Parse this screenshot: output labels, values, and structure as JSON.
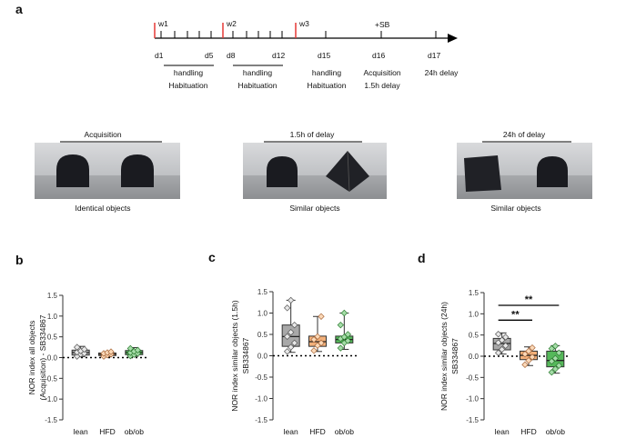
{
  "figure": {
    "panel_a": {
      "label": "a",
      "timeline": {
        "weeks": [
          "w1",
          "w2",
          "w3"
        ],
        "days": [
          "d1",
          "d5",
          "d8",
          "d12",
          "d15",
          "d16",
          "d17"
        ],
        "sb_label": "+SB",
        "phases": [
          {
            "top": "handling",
            "bottom": "Habituation"
          },
          {
            "top": "handling",
            "bottom": "Habituation"
          },
          {
            "top": "handling",
            "bottom": "Habituation"
          }
        ],
        "d16_line1": "Acquisition",
        "d16_line2": "1.5h delay",
        "d17_label": "24h  delay"
      },
      "photos": [
        {
          "title": "Acquisition",
          "caption": "Identical objects",
          "objects": [
            "dome",
            "dome"
          ]
        },
        {
          "title": "1.5h of delay",
          "caption": "Similar objects",
          "objects": [
            "dome",
            "diamond"
          ]
        },
        {
          "title": "24h of delay",
          "caption": "Similar objects",
          "objects": [
            "cube",
            "dome"
          ]
        }
      ]
    },
    "colors": {
      "lean": "#9e9e9e",
      "HFD": "#f0a868",
      "ob/ob": "#4caf50",
      "significance": "#000000"
    }
  },
  "chart_data": [
    {
      "panel": "b",
      "type": "box",
      "ylabel_line1": "NOR index all objects",
      "ylabel_line2": "(Acquisition) - SB334867",
      "categories": [
        "lean",
        "HFD",
        "ob/ob"
      ],
      "ylim": [
        -1.5,
        1.5
      ],
      "yticks": [
        "1.5",
        "1.0",
        "0.5",
        "0.0",
        "-0.5",
        "-1.0",
        "-1.5"
      ],
      "reference_line": 0,
      "series": [
        {
          "category": "lean",
          "min": 0.02,
          "q1": 0.06,
          "median": 0.12,
          "q3": 0.18,
          "max": 0.27,
          "points": [
            0.03,
            0.08,
            0.1,
            0.13,
            0.16,
            0.2,
            0.25
          ]
        },
        {
          "category": "HFD",
          "min": 0.02,
          "q1": 0.05,
          "median": 0.08,
          "q3": 0.11,
          "max": 0.14,
          "points": [
            0.03,
            0.06,
            0.08,
            0.1,
            0.12,
            0.14
          ]
        },
        {
          "category": "ob/ob",
          "min": 0.03,
          "q1": 0.07,
          "median": 0.12,
          "q3": 0.17,
          "max": 0.24,
          "points": [
            0.04,
            0.07,
            0.1,
            0.12,
            0.15,
            0.18,
            0.22
          ]
        }
      ],
      "significance": []
    },
    {
      "panel": "c",
      "type": "box",
      "ylabel_line1": "NOR index similar objects (1.5h)",
      "ylabel_line2": "SB334867",
      "categories": [
        "lean",
        "HFD",
        "ob/ob"
      ],
      "ylim": [
        -1.5,
        1.5
      ],
      "yticks": [
        "1.5",
        "1.0",
        "0.5",
        "0.0",
        "-0.5",
        "-1.0",
        "-1.5"
      ],
      "reference_line": 0,
      "series": [
        {
          "category": "lean",
          "min": 0.08,
          "q1": 0.22,
          "median": 0.45,
          "q3": 0.72,
          "max": 1.3,
          "points": [
            0.1,
            0.2,
            0.3,
            0.45,
            0.55,
            0.72,
            1.12,
            1.3
          ]
        },
        {
          "category": "HFD",
          "min": 0.1,
          "q1": 0.22,
          "median": 0.33,
          "q3": 0.46,
          "max": 0.92,
          "points": [
            0.12,
            0.24,
            0.3,
            0.38,
            0.45,
            0.92
          ]
        },
        {
          "category": "ob/ob",
          "min": 0.15,
          "q1": 0.3,
          "median": 0.38,
          "q3": 0.46,
          "max": 1.0,
          "points": [
            0.18,
            0.3,
            0.35,
            0.4,
            0.44,
            0.5,
            0.72,
            1.0
          ]
        }
      ],
      "significance": []
    },
    {
      "panel": "d",
      "type": "box",
      "ylabel_line1": "NOR index similar objects (24h)",
      "ylabel_line2": "SB334867",
      "categories": [
        "lean",
        "HFD",
        "ob/ob"
      ],
      "ylim": [
        -1.5,
        1.5
      ],
      "yticks": [
        "1.5",
        "1.0",
        "0.5",
        "0.0",
        "-0.5",
        "-1.0",
        "-1.5"
      ],
      "reference_line": 0,
      "series": [
        {
          "category": "lean",
          "min": 0.05,
          "q1": 0.15,
          "median": 0.3,
          "q3": 0.42,
          "max": 0.55,
          "points": [
            0.08,
            0.16,
            0.25,
            0.32,
            0.38,
            0.45,
            0.52
          ]
        },
        {
          "category": "HFD",
          "min": -0.22,
          "q1": -0.08,
          "median": 0.02,
          "q3": 0.12,
          "max": 0.22,
          "points": [
            -0.2,
            -0.1,
            -0.02,
            0.05,
            0.12,
            0.2
          ]
        },
        {
          "category": "ob/ob",
          "min": -0.4,
          "q1": -0.25,
          "median": -0.1,
          "q3": 0.12,
          "max": 0.25,
          "points": [
            -0.38,
            -0.3,
            -0.22,
            -0.12,
            -0.05,
            0.08,
            0.18,
            0.24
          ]
        }
      ],
      "significance": [
        {
          "from": "lean",
          "to": "HFD",
          "label": "**",
          "y": 0.85
        },
        {
          "from": "lean",
          "to": "ob/ob",
          "label": "**",
          "y": 1.2
        }
      ]
    }
  ]
}
